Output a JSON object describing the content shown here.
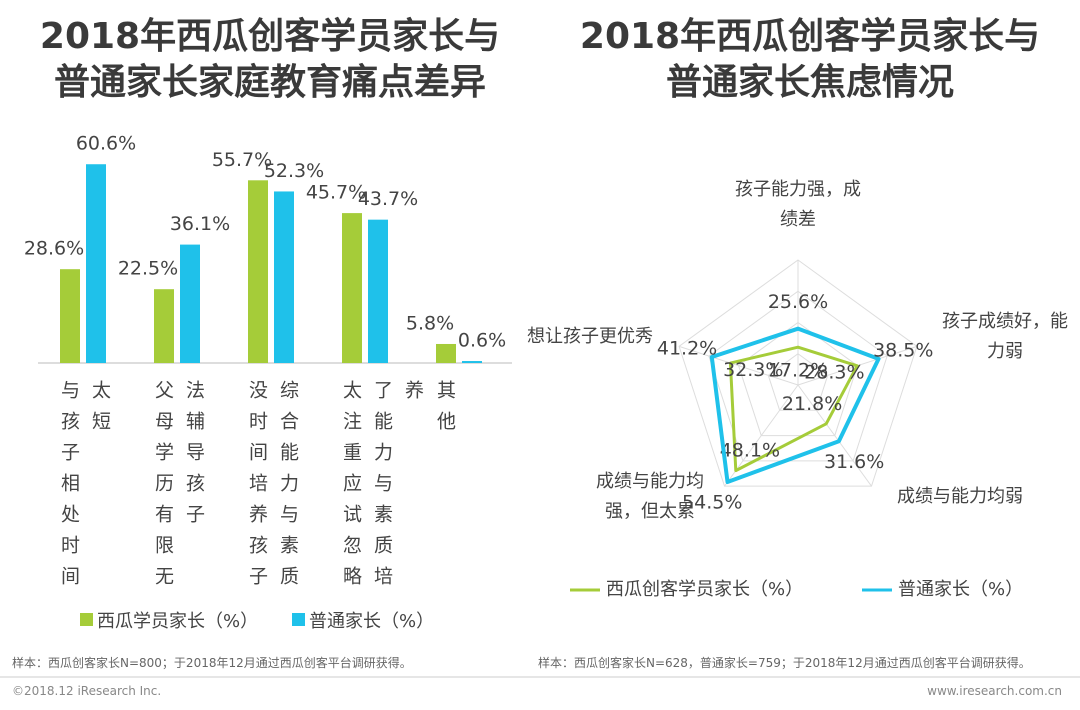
{
  "chart_data": [
    {
      "type": "bar",
      "title": "2018年西瓜创客学员家长与\n普通家长家庭教育痛点差异",
      "categories": [
        "与孩子相处时间太短",
        "父母学历有限无法辅导孩子",
        "没时间培养孩子综合能力与素质",
        "太注重应试忽略了能力与素质培养",
        "其他"
      ],
      "series": [
        {
          "name": "西瓜学员家长（%）",
          "color": "#a5cc39",
          "values": [
            28.6,
            22.5,
            55.7,
            45.7,
            5.8
          ],
          "value_labels": [
            "28.6%",
            "22.5%",
            "55.7%",
            "45.7%",
            "5.8%"
          ]
        },
        {
          "name": "普通家长（%）",
          "color": "#1fc1ea",
          "values": [
            60.6,
            36.1,
            52.3,
            43.7,
            0.6
          ],
          "value_labels": [
            "60.6%",
            "36.1%",
            "52.3%",
            "43.7%",
            "0.6%"
          ]
        }
      ],
      "note": "样本：西瓜创客家长N=800；于2018年12月通过西瓜创客平台调研获得。"
    },
    {
      "type": "radar",
      "title": "2018年西瓜创客学员家长与\n普通家长焦虑情况",
      "categories": [
        "孩子能力强，成\n绩差",
        "孩子成绩好，能\n力弱",
        "成绩与能力均弱",
        "成绩与能力均\n强，但太累",
        "想让孩子更优秀"
      ],
      "series": [
        {
          "name": "西瓜创客学员家长（%）",
          "color": "#a5cc39",
          "values": [
            17.2,
            28.3,
            21.8,
            48.1,
            32.3
          ],
          "value_labels": [
            "17.2%",
            "28.3%",
            "21.8%",
            "48.1%",
            "32.3%"
          ]
        },
        {
          "name": "普通家长（%）",
          "color": "#1fc1ea",
          "values": [
            25.6,
            38.5,
            31.6,
            54.5,
            41.2
          ],
          "value_labels": [
            "25.6%",
            "38.5%",
            "31.6%",
            "54.5%",
            "41.2%"
          ]
        }
      ],
      "note": "样本：西瓜创客家长N=628，普通家长=759；于2018年12月通过西瓜创客平台调研获得。"
    }
  ],
  "copyright": "©2018.12 iResearch Inc.",
  "website": "www.iresearch.com.cn"
}
